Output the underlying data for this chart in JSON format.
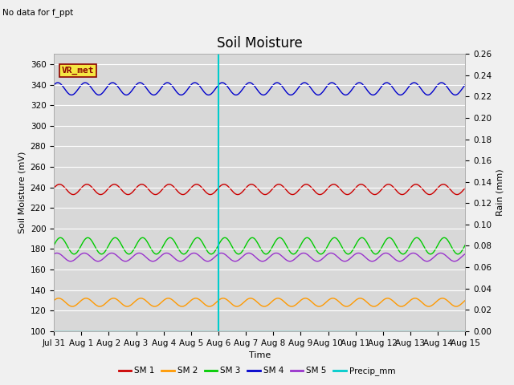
{
  "title": "Soil Moisture",
  "top_left_text": "No data for f_ppt",
  "vr_met_label": "VR_met",
  "ylabel_left": "Soil Moisture (mV)",
  "ylabel_right": "Rain (mm)",
  "xlabel": "Time",
  "ylim_left": [
    100,
    370
  ],
  "ylim_right": [
    0.0,
    0.26
  ],
  "x_tick_labels": [
    "Jul 31",
    "Aug 1",
    "Aug 2",
    "Aug 3",
    "Aug 4",
    "Aug 5",
    "Aug 6",
    "Aug 7",
    "Aug 8",
    "Aug 9",
    "Aug 10",
    "Aug 11",
    "Aug 12",
    "Aug 13",
    "Aug 14",
    "Aug 15"
  ],
  "vertical_line_x": 6.0,
  "sm1_color": "#cc0000",
  "sm2_color": "#ff9900",
  "sm3_color": "#00cc00",
  "sm4_color": "#0000cc",
  "sm5_color": "#9933cc",
  "precip_color": "#00cccc",
  "sm1_base": 238,
  "sm1_amp": 5,
  "sm2_base": 128,
  "sm2_amp": 4,
  "sm3_base": 183,
  "sm3_amp": 8,
  "sm4_base": 336,
  "sm4_amp": 6,
  "sm5_base": 172,
  "sm5_amp": 4,
  "bg_color": "#d8d8d8",
  "fig_bg_color": "#f0f0f0",
  "grid_color": "#ffffff",
  "title_fontsize": 12,
  "label_fontsize": 8,
  "tick_fontsize": 7.5
}
